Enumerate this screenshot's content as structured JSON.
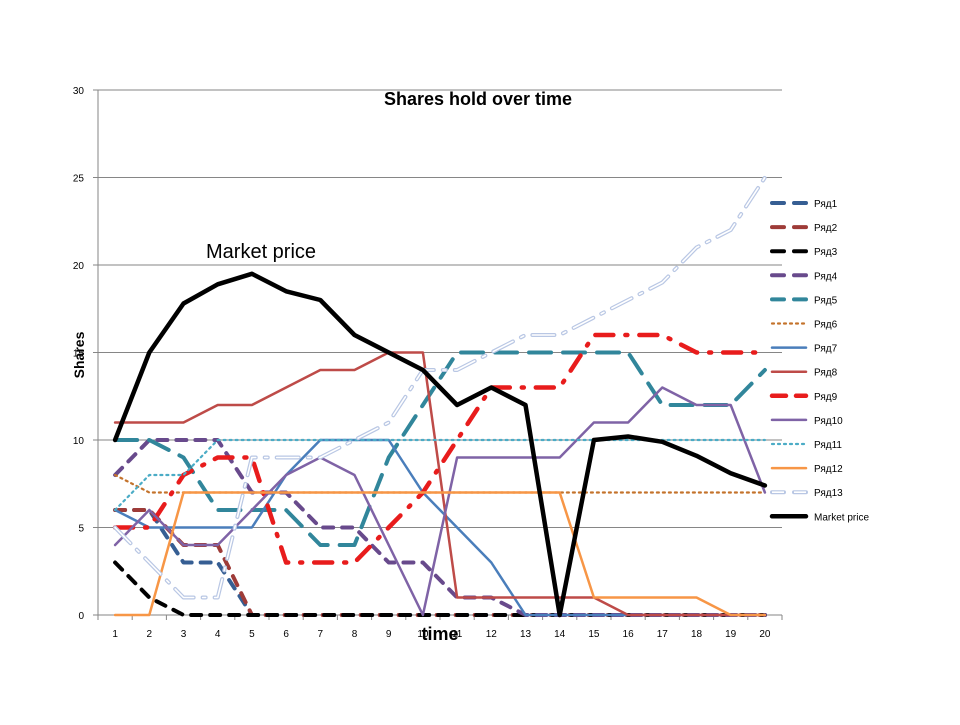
{
  "chart_data": {
    "type": "line",
    "title": "Shares hold over time",
    "xlabel": "time",
    "ylabel": "Shares",
    "annotation": "Market price",
    "categories": [
      "1",
      "2",
      "3",
      "4",
      "5",
      "6",
      "7",
      "8",
      "9",
      "10",
      "11",
      "12",
      "13",
      "14",
      "15",
      "16",
      "17",
      "18",
      "19",
      "20"
    ],
    "ylim": [
      0,
      30
    ],
    "yticks": [
      "0",
      "5",
      "10",
      "15",
      "20",
      "25",
      "30"
    ],
    "grid": "horizontal",
    "legend_position": "right",
    "series": [
      {
        "name": "Ряд1",
        "color": "#365e93",
        "style": "dash",
        "values": [
          6,
          6,
          3,
          3,
          0,
          0,
          0,
          0,
          0,
          0,
          0,
          0,
          0,
          0,
          0,
          0,
          0,
          0,
          0,
          0
        ]
      },
      {
        "name": "Ряд2",
        "color": "#9e3b38",
        "style": "dash",
        "values": [
          6,
          6,
          4,
          4,
          0,
          0,
          0,
          0,
          0,
          0,
          0,
          0,
          0,
          0,
          0,
          0,
          0,
          0,
          0,
          0
        ]
      },
      {
        "name": "Ряд3",
        "color": "#000000",
        "style": "dash",
        "values": [
          3,
          1,
          0,
          0,
          0,
          0,
          0,
          0,
          0,
          0,
          0,
          0,
          0,
          0,
          0,
          0,
          0,
          0,
          0,
          0
        ]
      },
      {
        "name": "Ряд4",
        "color": "#684a8c",
        "style": "dash",
        "values": [
          8,
          10,
          10,
          10,
          7,
          7,
          5,
          5,
          3,
          3,
          1,
          1,
          0,
          0,
          0,
          0,
          0,
          0,
          0,
          0
        ]
      },
      {
        "name": "Ряд5",
        "color": "#31869b",
        "style": "longdash",
        "values": [
          10,
          10,
          9,
          6,
          6,
          6,
          4,
          4,
          9,
          12,
          15,
          15,
          15,
          15,
          15,
          15,
          12,
          12,
          12,
          14
        ]
      },
      {
        "name": "Ряд6",
        "color": "#c4732c",
        "style": "dot",
        "values": [
          8,
          7,
          7,
          7,
          7,
          7,
          7,
          7,
          7,
          7,
          7,
          7,
          7,
          7,
          7,
          7,
          7,
          7,
          7,
          7
        ]
      },
      {
        "name": "Ряд7",
        "color": "#4a7ebb",
        "style": "solid",
        "values": [
          6,
          5,
          5,
          5,
          5,
          8,
          10,
          10,
          10,
          7,
          5,
          3,
          0,
          0,
          0,
          0,
          0,
          0,
          0,
          0
        ]
      },
      {
        "name": "Ряд8",
        "color": "#be4b48",
        "style": "solid",
        "values": [
          11,
          11,
          11,
          12,
          12,
          13,
          14,
          14,
          15,
          15,
          1,
          1,
          1,
          1,
          1,
          0,
          0,
          0,
          0,
          0
        ]
      },
      {
        "name": "Ряд9",
        "color": "#e81c1c",
        "style": "dashdot",
        "values": [
          5,
          5,
          8,
          9,
          9,
          3,
          3,
          3,
          5,
          7,
          10,
          13,
          13,
          13,
          16,
          16,
          16,
          15,
          15,
          15
        ]
      },
      {
        "name": "Ряд10",
        "color": "#7f63a6",
        "style": "solid",
        "values": [
          4,
          6,
          4,
          4,
          6,
          8,
          9,
          8,
          4,
          0,
          9,
          9,
          9,
          9,
          11,
          11,
          13,
          12,
          12,
          7
        ]
      },
      {
        "name": "Ряд11",
        "color": "#4bacc6",
        "style": "dot",
        "values": [
          6,
          8,
          8,
          10,
          10,
          10,
          10,
          10,
          10,
          10,
          10,
          10,
          10,
          10,
          10,
          10,
          10,
          10,
          10,
          10
        ]
      },
      {
        "name": "Ряд12",
        "color": "#f79646",
        "style": "solid",
        "values": [
          0,
          0,
          7,
          7,
          7,
          7,
          7,
          7,
          7,
          7,
          7,
          7,
          7,
          7,
          1,
          1,
          1,
          1,
          0,
          0
        ]
      },
      {
        "name": "Ряд13",
        "color": "#b9c7e4",
        "style": "double",
        "values": [
          5,
          3,
          1,
          1,
          9,
          9,
          9,
          10,
          11,
          14,
          14,
          15,
          16,
          16,
          17,
          18,
          19,
          21,
          22,
          25
        ]
      },
      {
        "name": "Market price",
        "color": "#000000",
        "style": "thick",
        "values": [
          10,
          15,
          17.8,
          18.9,
          19.5,
          18.5,
          18,
          16,
          15,
          14,
          12,
          13,
          12,
          0,
          10,
          10.2,
          9.9,
          9.1,
          8.1,
          7.4
        ]
      }
    ]
  }
}
